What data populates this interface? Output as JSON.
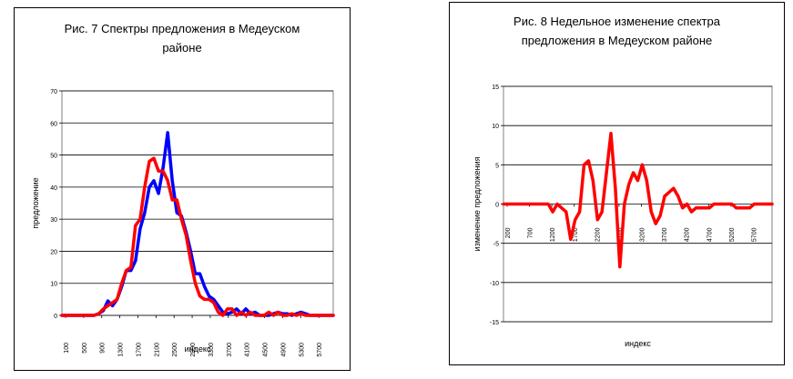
{
  "chart_data": [
    {
      "type": "line",
      "title": "Рис. 7 Спектры предложения в Медеуском районе",
      "xlabel": "индекс",
      "ylabel": "предложение",
      "ylim": [
        0,
        70
      ],
      "yticks": [
        0,
        10,
        20,
        30,
        40,
        50,
        60,
        70
      ],
      "xlim": [
        100,
        6000
      ],
      "xtick_labels": [
        "100",
        "500",
        "900",
        "1300",
        "1700",
        "2100",
        "2500",
        "2900",
        "3300",
        "3700",
        "4100",
        "4500",
        "4900",
        "5300",
        "5700"
      ],
      "grid": "horizontal",
      "series": [
        {
          "color": "#0000ff",
          "x": [
            100,
            700,
            800,
            900,
            1000,
            1100,
            1200,
            1300,
            1400,
            1500,
            1600,
            1700,
            1800,
            1900,
            2000,
            2100,
            2200,
            2300,
            2400,
            2500,
            2600,
            2700,
            2800,
            2900,
            3000,
            3100,
            3200,
            3300,
            3400,
            3500,
            3600,
            3700,
            3800,
            3900,
            4000,
            4100,
            4200,
            4300,
            4400,
            4500,
            4600,
            4700,
            4800,
            4900,
            5000,
            5100,
            5200,
            5300,
            5400,
            5500,
            5600,
            5700,
            5800,
            5900,
            6000
          ],
          "values": [
            0,
            0,
            0,
            0.5,
            1.5,
            4.5,
            3,
            5,
            9,
            14,
            14,
            17,
            27,
            32,
            40,
            42,
            38,
            46,
            57,
            42,
            32,
            31,
            26,
            20,
            13,
            13,
            9,
            6,
            5,
            3,
            1,
            0.5,
            1,
            2,
            0.5,
            2,
            0.5,
            1,
            0,
            0,
            0,
            0.5,
            1,
            0.5,
            0.5,
            0,
            0.5,
            1,
            0.5,
            0,
            0,
            0,
            0,
            0,
            0
          ]
        },
        {
          "color": "#ff0000",
          "x": [
            100,
            700,
            800,
            900,
            1000,
            1100,
            1200,
            1300,
            1400,
            1500,
            1600,
            1700,
            1800,
            1900,
            2000,
            2100,
            2200,
            2300,
            2400,
            2500,
            2600,
            2700,
            2800,
            2900,
            3000,
            3100,
            3200,
            3300,
            3400,
            3500,
            3600,
            3700,
            3800,
            3900,
            4000,
            4100,
            4200,
            4300,
            4400,
            4500,
            4600,
            4700,
            4800,
            4900,
            5000,
            5100,
            5200,
            5300,
            5400,
            5500,
            5600,
            5700,
            5800,
            5900,
            6000
          ],
          "values": [
            0,
            0,
            0,
            0.5,
            2,
            3,
            4,
            5,
            10,
            14,
            15,
            28,
            30,
            40,
            48,
            49,
            45,
            45,
            42,
            36,
            36,
            30,
            25,
            17,
            10,
            6,
            5,
            5,
            4,
            1,
            0,
            2,
            2,
            0,
            1,
            0,
            1,
            0,
            0,
            0,
            1,
            0,
            1,
            0,
            0,
            0.5,
            0,
            0.5,
            0,
            0,
            0,
            0,
            0,
            0,
            0
          ]
        }
      ]
    },
    {
      "type": "line",
      "title": "Рис. 8 Недельное изменение спектра предложения в Медеуском районе",
      "xlabel": "индекс",
      "ylabel": "изменение предложения",
      "ylim": [
        -15,
        15
      ],
      "yticks": [
        -15,
        -10,
        -5,
        0,
        5,
        10,
        15
      ],
      "xlim": [
        200,
        6200
      ],
      "xtick_labels": [
        "200",
        "700",
        "1200",
        "1700",
        "2200",
        "2700",
        "3200",
        "3700",
        "4200",
        "4700",
        "5200",
        "5700"
      ],
      "grid": "horizontal",
      "series": [
        {
          "color": "#ff0000",
          "x": [
            200,
            300,
            500,
            700,
            900,
            1100,
            1200,
            1300,
            1400,
            1500,
            1600,
            1700,
            1800,
            1900,
            2000,
            2100,
            2200,
            2300,
            2400,
            2500,
            2600,
            2700,
            2800,
            2900,
            3000,
            3100,
            3200,
            3300,
            3400,
            3500,
            3600,
            3700,
            3800,
            3900,
            4000,
            4100,
            4200,
            4300,
            4400,
            4500,
            4600,
            4700,
            4800,
            4900,
            5000,
            5100,
            5200,
            5300,
            5400,
            5500,
            5600,
            5700,
            5800,
            5900,
            6000,
            6100,
            6200
          ],
          "values": [
            0,
            0,
            0,
            0,
            0,
            0,
            0,
            -1,
            0,
            -0.5,
            -1,
            -4.5,
            -2,
            -1,
            5,
            5.5,
            3,
            -2,
            -1,
            4,
            9,
            2,
            -8,
            0,
            2.5,
            4,
            3,
            5,
            3,
            -1,
            -2.5,
            -1.5,
            1,
            1.5,
            2,
            1,
            -0.5,
            0,
            -1,
            -0.5,
            -0.5,
            -0.5,
            -0.5,
            0,
            0,
            0,
            0,
            0,
            -0.5,
            -0.5,
            -0.5,
            -0.5,
            0,
            0,
            0,
            0,
            0
          ]
        }
      ]
    }
  ]
}
